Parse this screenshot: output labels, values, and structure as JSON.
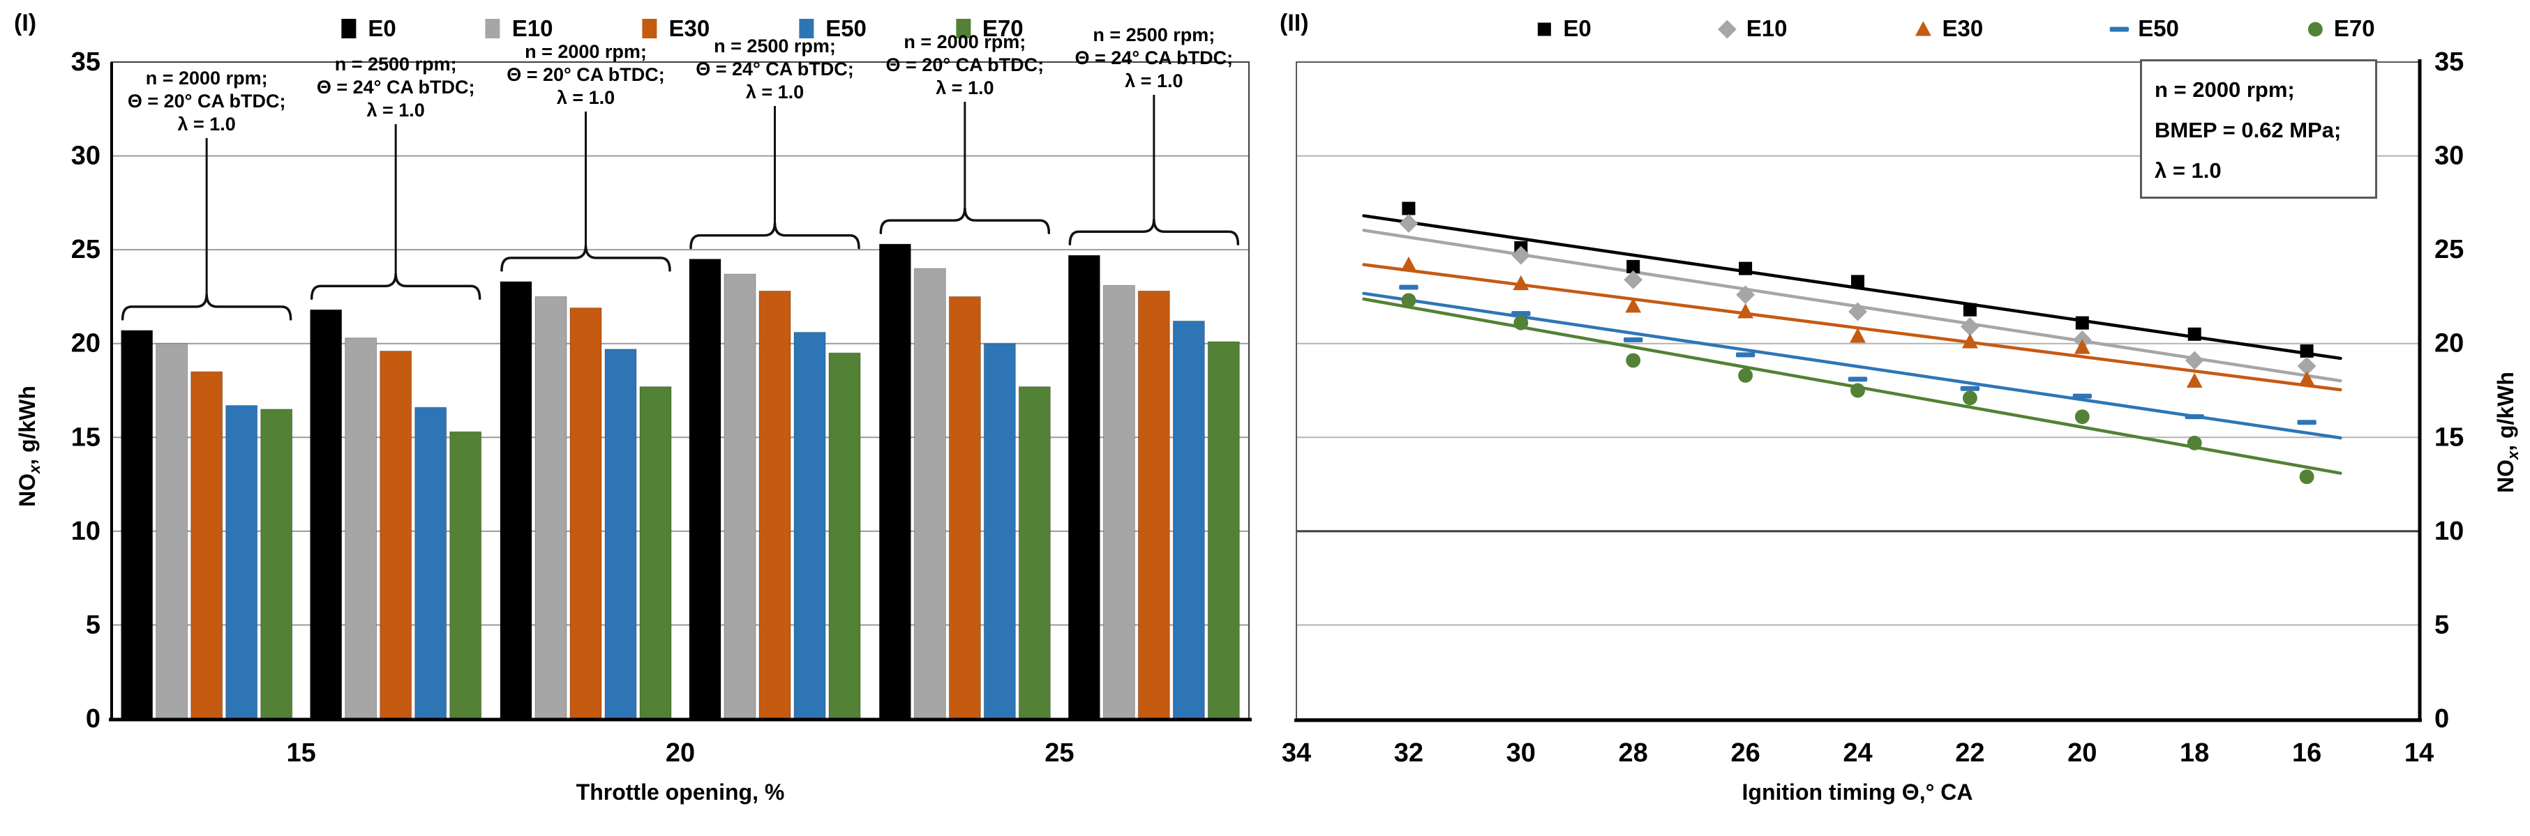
{
  "figure": {
    "panels": [
      {
        "label": "(I)"
      },
      {
        "label": "(II)"
      }
    ]
  },
  "legend_series": [
    {
      "name": "E0",
      "color": "#000000",
      "marker": "square"
    },
    {
      "name": "E10",
      "color": "#A6A6A6",
      "marker": "diamond"
    },
    {
      "name": "E30",
      "color": "#C55A11",
      "marker": "triangle"
    },
    {
      "name": "E50",
      "color": "#2E75B6",
      "marker": "dash"
    },
    {
      "name": "E70",
      "color": "#538135",
      "marker": "circle"
    }
  ],
  "chart_data": [
    {
      "id": "I",
      "type": "bar",
      "title": "",
      "xlabel": "Throttle opening, %",
      "ylabel": "NOx, g/kWh",
      "ylabel_parts": {
        "prefix": "NO",
        "sub": "x",
        "suffix": ", g/kWh"
      },
      "ylim": [
        0,
        35
      ],
      "yticks": [
        0,
        5,
        10,
        15,
        20,
        25,
        30,
        35
      ],
      "gridlines": [
        5,
        10,
        15,
        20,
        25,
        30
      ],
      "categories": [
        "15",
        "20",
        "25"
      ],
      "series_names": [
        "E0",
        "E10",
        "E30",
        "E50",
        "E70"
      ],
      "clusters": [
        {
          "category": "15",
          "condition": [
            "n = 2000 rpm;",
            "Θ = 20° CA bTDC;",
            "λ = 1.0"
          ],
          "values": [
            20.7,
            20.0,
            18.5,
            16.7,
            16.5
          ]
        },
        {
          "category": "15",
          "condition": [
            "n = 2500 rpm;",
            "Θ = 24° CA bTDC;",
            "λ = 1.0"
          ],
          "values": [
            21.8,
            20.3,
            19.6,
            16.6,
            15.3
          ]
        },
        {
          "category": "20",
          "condition": [
            "n = 2000 rpm;",
            "Θ = 20° CA bTDC;",
            "λ = 1.0"
          ],
          "values": [
            23.3,
            22.5,
            21.9,
            19.7,
            17.7
          ]
        },
        {
          "category": "20",
          "condition": [
            "n = 2500 rpm;",
            "Θ = 24° CA bTDC;",
            "λ = 1.0"
          ],
          "values": [
            24.5,
            23.7,
            22.8,
            20.6,
            19.5
          ]
        },
        {
          "category": "25",
          "condition": [
            "n = 2000 rpm;",
            "Θ = 20° CA bTDC;",
            "λ = 1.0"
          ],
          "values": [
            25.3,
            24.0,
            22.5,
            20.0,
            17.7
          ]
        },
        {
          "category": "25",
          "condition": [
            "n = 2500 rpm;",
            "Θ = 24° CA bTDC;",
            "λ = 1.0"
          ],
          "values": [
            24.7,
            23.1,
            22.8,
            21.2,
            20.1
          ]
        }
      ]
    },
    {
      "id": "II",
      "type": "scatter",
      "title": "",
      "xlabel": "Ignition timing Θ,° CA",
      "ylabel": "NOx, g/kWh",
      "ylabel_parts": {
        "prefix": "NO",
        "sub": "x",
        "suffix": ", g/kWh"
      },
      "ylim": [
        0,
        35
      ],
      "yticks": [
        0,
        5,
        10,
        15,
        20,
        25,
        30,
        35
      ],
      "gridlines": [
        5,
        10,
        15,
        20,
        30
      ],
      "gridline_dark": 10,
      "x_reversed": true,
      "xticks": [
        34,
        32,
        30,
        28,
        26,
        24,
        22,
        20,
        18,
        16,
        14
      ],
      "x": [
        32,
        30,
        28,
        26,
        24,
        22,
        20,
        18,
        16
      ],
      "annotation": [
        "n = 2000 rpm;",
        "BMEP = 0.62 MPa;",
        "λ = 1.0"
      ],
      "series": [
        {
          "name": "E0",
          "marker": "square",
          "color": "#000000",
          "trend": true,
          "values": [
            27.2,
            25.1,
            24.1,
            24.0,
            23.3,
            21.8,
            21.1,
            20.5,
            19.6
          ]
        },
        {
          "name": "E10",
          "marker": "diamond",
          "color": "#A6A6A6",
          "trend": true,
          "values": [
            26.4,
            24.7,
            23.4,
            22.6,
            21.7,
            20.9,
            20.2,
            19.1,
            18.8
          ]
        },
        {
          "name": "E30",
          "marker": "triangle",
          "color": "#C55A11",
          "trend": true,
          "values": [
            24.2,
            23.2,
            22.0,
            21.7,
            20.4,
            20.1,
            19.8,
            18.0,
            18.1
          ]
        },
        {
          "name": "E50",
          "marker": "dash",
          "color": "#2E75B6",
          "trend": true,
          "values": [
            23.0,
            21.6,
            20.2,
            19.4,
            18.1,
            17.6,
            17.2,
            16.1,
            15.8
          ]
        },
        {
          "name": "E70",
          "marker": "circle",
          "color": "#538135",
          "trend": true,
          "values": [
            22.3,
            21.1,
            19.1,
            18.3,
            17.5,
            17.1,
            16.1,
            14.7,
            12.9
          ]
        }
      ]
    }
  ]
}
